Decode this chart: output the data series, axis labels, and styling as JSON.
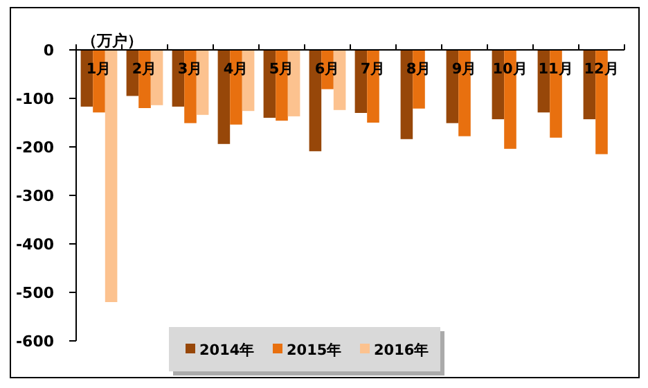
{
  "chart_data": {
    "type": "bar",
    "ylabel": "（万户）",
    "categories": [
      "1月",
      "2月",
      "3月",
      "4月",
      "5月",
      "6月",
      "7月",
      "8月",
      "9月",
      "10月",
      "11月",
      "12月"
    ],
    "series": [
      {
        "name": "2014年",
        "color": "#974709",
        "values": [
          -117,
          -95,
          -117,
          -194,
          -140,
          -209,
          -130,
          -184,
          -151,
          -143,
          -129,
          -143
        ]
      },
      {
        "name": "2015年",
        "color": "#e8700f",
        "values": [
          -129,
          -120,
          -151,
          -154,
          -146,
          -81,
          -150,
          -121,
          -178,
          -204,
          -181,
          -215
        ]
      },
      {
        "name": "2016年",
        "color": "#fcc28f",
        "values": [
          -520,
          -114,
          -134,
          -126,
          -137,
          -124,
          null,
          null,
          null,
          null,
          null,
          null
        ]
      }
    ],
    "ylim": [
      -600,
      0
    ],
    "yticks": [
      0,
      -100,
      -200,
      -300,
      -400,
      -500,
      -600
    ],
    "grid": false,
    "legend": "bottom"
  }
}
